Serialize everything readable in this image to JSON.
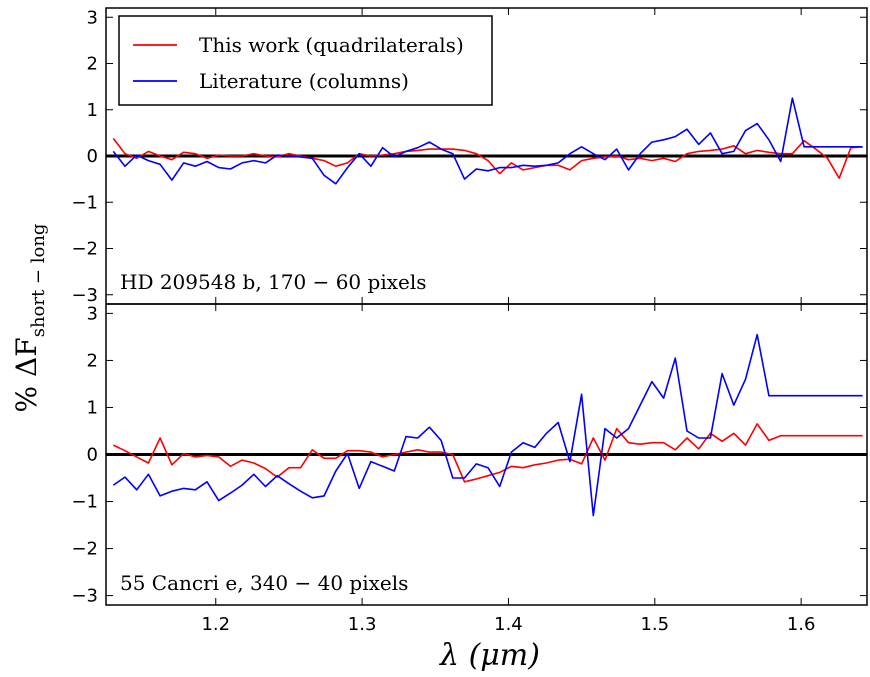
{
  "chart_data": [
    {
      "type": "line",
      "annotation": "HD 209548 b,  170 − 60 pixels",
      "xlim": [
        1.125,
        1.645
      ],
      "ylim": [
        -3.2,
        3.2
      ],
      "yticks": [
        -3,
        -2,
        -1,
        0,
        1,
        2,
        3
      ],
      "ytick_labels": [
        "−3",
        "−2",
        "−1",
        "0",
        "1",
        "2",
        "3"
      ],
      "legend": {
        "position": "top-left",
        "entries": [
          {
            "name": "This work (quadrilaterals)",
            "color": "#ff0000"
          },
          {
            "name": "Literature (columns)",
            "color": "#0000ff"
          }
        ]
      },
      "hline": 0,
      "series": [
        {
          "name": "This work (quadrilaterals)",
          "color": "#ff0000",
          "x": [
            1.13,
            1.138,
            1.146,
            1.154,
            1.162,
            1.17,
            1.178,
            1.186,
            1.194,
            1.202,
            1.21,
            1.218,
            1.226,
            1.234,
            1.242,
            1.25,
            1.258,
            1.266,
            1.274,
            1.282,
            1.29,
            1.298,
            1.306,
            1.314,
            1.322,
            1.33,
            1.338,
            1.346,
            1.354,
            1.362,
            1.37,
            1.378,
            1.386,
            1.394,
            1.402,
            1.41,
            1.418,
            1.426,
            1.434,
            1.442,
            1.45,
            1.458,
            1.466,
            1.474,
            1.482,
            1.49,
            1.498,
            1.506,
            1.514,
            1.522,
            1.53,
            1.538,
            1.546,
            1.554,
            1.562,
            1.57,
            1.578,
            1.586,
            1.594,
            1.602,
            1.61,
            1.618,
            1.626,
            1.634,
            1.642
          ],
          "y": [
            0.38,
            0.05,
            -0.05,
            0.1,
            0.0,
            -0.08,
            0.08,
            0.05,
            -0.05,
            0.02,
            0.0,
            0.0,
            0.05,
            0.0,
            -0.02,
            0.05,
            0.0,
            -0.05,
            -0.1,
            -0.22,
            -0.15,
            0.05,
            0.0,
            0.02,
            0.05,
            0.1,
            0.12,
            0.15,
            0.15,
            0.15,
            0.12,
            0.05,
            -0.1,
            -0.38,
            -0.15,
            -0.3,
            -0.25,
            -0.2,
            -0.2,
            -0.3,
            -0.1,
            -0.05,
            -0.02,
            0.0,
            -0.08,
            -0.05,
            -0.1,
            -0.05,
            -0.12,
            0.05,
            0.1,
            0.12,
            0.15,
            0.22,
            0.05,
            0.12,
            0.08,
            0.05,
            0.05,
            0.33,
            0.15,
            -0.05,
            -0.48,
            0.18,
            0.2
          ]
        },
        {
          "name": "Literature (columns)",
          "color": "#0000ff",
          "x": [
            1.13,
            1.138,
            1.146,
            1.154,
            1.162,
            1.17,
            1.178,
            1.186,
            1.194,
            1.202,
            1.21,
            1.218,
            1.226,
            1.234,
            1.242,
            1.25,
            1.258,
            1.266,
            1.274,
            1.282,
            1.29,
            1.298,
            1.306,
            1.314,
            1.322,
            1.33,
            1.338,
            1.346,
            1.354,
            1.362,
            1.37,
            1.378,
            1.386,
            1.394,
            1.402,
            1.41,
            1.418,
            1.426,
            1.434,
            1.442,
            1.45,
            1.458,
            1.466,
            1.474,
            1.482,
            1.49,
            1.498,
            1.506,
            1.514,
            1.522,
            1.53,
            1.538,
            1.546,
            1.554,
            1.562,
            1.57,
            1.578,
            1.586,
            1.594,
            1.602,
            1.61,
            1.618,
            1.626,
            1.634,
            1.642
          ],
          "y": [
            0.1,
            -0.22,
            0.02,
            -0.1,
            -0.18,
            -0.52,
            -0.15,
            -0.22,
            -0.12,
            -0.25,
            -0.28,
            -0.15,
            -0.1,
            -0.15,
            0.02,
            0.0,
            -0.02,
            -0.05,
            -0.42,
            -0.6,
            -0.25,
            0.05,
            -0.22,
            0.18,
            -0.02,
            0.1,
            0.18,
            0.3,
            0.15,
            0.05,
            -0.5,
            -0.28,
            -0.32,
            -0.25,
            -0.25,
            -0.2,
            -0.22,
            -0.2,
            -0.15,
            0.05,
            0.2,
            0.05,
            -0.08,
            0.15,
            -0.3,
            0.05,
            0.3,
            0.35,
            0.42,
            0.58,
            0.25,
            0.5,
            0.05,
            0.1,
            0.55,
            0.7,
            0.35,
            -0.12,
            1.25,
            0.2,
            0.2,
            0.2,
            0.2,
            0.2,
            0.2
          ]
        }
      ]
    },
    {
      "type": "line",
      "annotation": "55 Cancri e,  340 − 40 pixels",
      "xlim": [
        1.125,
        1.645
      ],
      "ylim": [
        -3.2,
        3.2
      ],
      "yticks": [
        -3,
        -2,
        -1,
        0,
        1,
        2,
        3
      ],
      "ytick_labels": [
        "−3",
        "−2",
        "−1",
        "0",
        "1",
        "2",
        "3"
      ],
      "hline": 0,
      "series": [
        {
          "name": "This work (quadrilaterals)",
          "color": "#ff0000",
          "x": [
            1.13,
            1.138,
            1.146,
            1.154,
            1.162,
            1.17,
            1.178,
            1.186,
            1.194,
            1.202,
            1.21,
            1.218,
            1.226,
            1.234,
            1.242,
            1.25,
            1.258,
            1.266,
            1.274,
            1.282,
            1.29,
            1.298,
            1.306,
            1.314,
            1.322,
            1.33,
            1.338,
            1.346,
            1.354,
            1.362,
            1.37,
            1.378,
            1.386,
            1.394,
            1.402,
            1.41,
            1.418,
            1.426,
            1.434,
            1.442,
            1.45,
            1.458,
            1.466,
            1.474,
            1.482,
            1.49,
            1.498,
            1.506,
            1.514,
            1.522,
            1.53,
            1.538,
            1.546,
            1.554,
            1.562,
            1.57,
            1.578,
            1.586,
            1.594,
            1.602,
            1.61,
            1.618,
            1.626,
            1.634,
            1.642
          ],
          "y": [
            0.2,
            0.08,
            -0.05,
            -0.18,
            0.35,
            -0.22,
            0.02,
            -0.05,
            -0.02,
            -0.05,
            -0.25,
            -0.12,
            -0.18,
            -0.3,
            -0.48,
            -0.28,
            -0.28,
            0.1,
            -0.08,
            -0.08,
            0.08,
            0.08,
            0.05,
            -0.05,
            0.0,
            0.05,
            0.1,
            0.05,
            0.05,
            0.0,
            -0.58,
            -0.52,
            -0.45,
            -0.38,
            -0.25,
            -0.28,
            -0.22,
            -0.18,
            -0.12,
            -0.1,
            -0.2,
            0.35,
            -0.12,
            0.55,
            0.25,
            0.22,
            0.25,
            0.25,
            0.1,
            0.35,
            0.12,
            0.45,
            0.28,
            0.45,
            0.2,
            0.65,
            0.3,
            0.4,
            0.4,
            0.4,
            0.4,
            0.4,
            0.4,
            0.4,
            0.4
          ]
        },
        {
          "name": "Literature (columns)",
          "color": "#0000ff",
          "x": [
            1.13,
            1.138,
            1.146,
            1.154,
            1.162,
            1.17,
            1.178,
            1.186,
            1.194,
            1.202,
            1.21,
            1.218,
            1.226,
            1.234,
            1.242,
            1.25,
            1.258,
            1.266,
            1.274,
            1.282,
            1.29,
            1.298,
            1.306,
            1.314,
            1.322,
            1.33,
            1.338,
            1.346,
            1.354,
            1.362,
            1.37,
            1.378,
            1.386,
            1.394,
            1.402,
            1.41,
            1.418,
            1.426,
            1.434,
            1.442,
            1.45,
            1.458,
            1.466,
            1.474,
            1.482,
            1.49,
            1.498,
            1.506,
            1.514,
            1.522,
            1.53,
            1.538,
            1.546,
            1.554,
            1.562,
            1.57,
            1.578,
            1.586,
            1.594,
            1.602,
            1.61,
            1.618,
            1.626,
            1.634,
            1.642
          ],
          "y": [
            -0.65,
            -0.48,
            -0.75,
            -0.42,
            -0.88,
            -0.78,
            -0.72,
            -0.75,
            -0.58,
            -0.98,
            -0.82,
            -0.65,
            -0.42,
            -0.68,
            -0.45,
            -0.62,
            -0.78,
            -0.92,
            -0.88,
            -0.35,
            0.02,
            -0.72,
            -0.15,
            -0.25,
            -0.35,
            0.38,
            0.35,
            0.58,
            0.3,
            -0.5,
            -0.5,
            -0.2,
            -0.28,
            -0.68,
            0.05,
            0.25,
            0.15,
            0.45,
            0.68,
            -0.15,
            1.28,
            -1.3,
            0.55,
            0.35,
            0.55,
            1.05,
            1.55,
            1.2,
            2.05,
            0.5,
            0.35,
            0.35,
            1.72,
            1.05,
            1.6,
            2.55,
            1.25,
            1.25,
            1.25,
            1.25,
            1.25,
            1.25,
            1.25,
            1.25,
            1.25
          ]
        }
      ]
    }
  ],
  "x_axis": {
    "label": "λ (μm)",
    "ticks": [
      1.2,
      1.3,
      1.4,
      1.5,
      1.6
    ],
    "tick_labels": [
      "1.2",
      "1.3",
      "1.4",
      "1.5",
      "1.6"
    ]
  },
  "y_axis": {
    "label": "% ΔF",
    "label_subscript": "short − long"
  }
}
